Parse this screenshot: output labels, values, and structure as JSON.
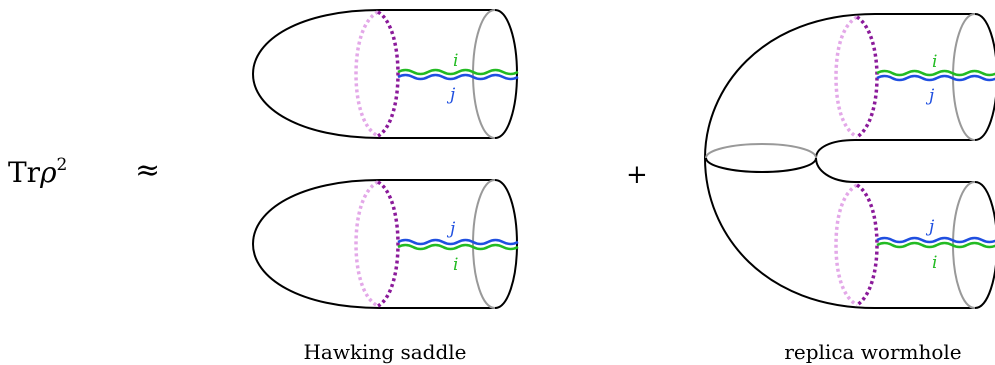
{
  "lhs": {
    "tr": "Tr",
    "rho": "ρ",
    "exp": "2"
  },
  "approx": "≈",
  "plus": "+",
  "hawking": {
    "caption": "Hawking saddle",
    "top": {
      "upper_index": "i",
      "lower_index": "j"
    },
    "bottom": {
      "upper_index": "j",
      "lower_index": "i"
    }
  },
  "wormhole": {
    "caption": "replica wormhole",
    "top": {
      "upper_index": "i",
      "lower_index": "j"
    },
    "bottom": {
      "upper_index": "j",
      "lower_index": "i"
    }
  },
  "colors": {
    "outline": "#000000",
    "cut": "#999999",
    "surface_front": "#8b1a9a",
    "surface_back": "#e3a8e8",
    "index_i": "#22bb22",
    "index_j": "#1f4fe0"
  }
}
